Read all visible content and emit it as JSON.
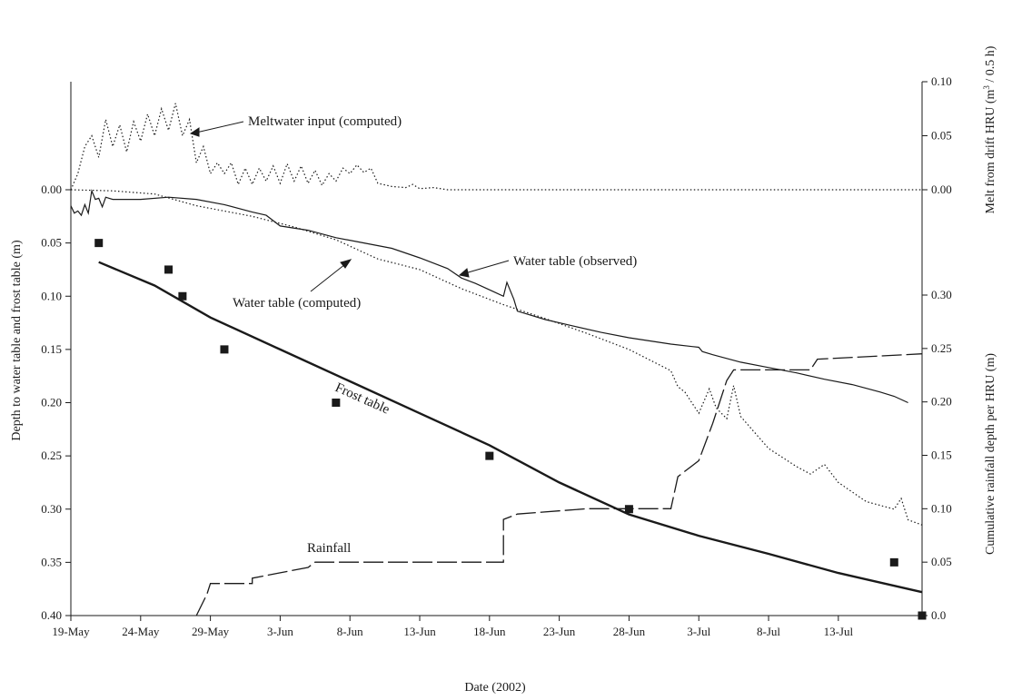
{
  "chart_data": {
    "type": "line",
    "xlabel": "Date (2002)",
    "x_ticks": [
      "19-May",
      "24-May",
      "29-May",
      "3-Jun",
      "8-Jun",
      "13-Jun",
      "18-Jun",
      "23-Jun",
      "28-Jun",
      "3-Jul",
      "8-Jul",
      "13-Jul"
    ],
    "xlim": [
      "2002-05-19",
      "2002-07-19"
    ],
    "left_axis": {
      "label": "Depth to water table and frost table (m)",
      "ylim": [
        0.0,
        0.4
      ],
      "inverted": true,
      "ticks": [
        "0.00",
        "0.05",
        "0.10",
        "0.15",
        "0.20",
        "0.25",
        "0.30",
        "0.35",
        "0.40"
      ]
    },
    "right_top_axis": {
      "label_main": "Melt from drift HRU (m",
      "label_sup": "3",
      "label_tail": " / 0.5 h)",
      "ylim": [
        0.0,
        0.1
      ],
      "ticks": [
        "0.00",
        "0.05",
        "0.10"
      ]
    },
    "right_bottom_axis": {
      "label": "Cumulative rainfall depth per HRU (m)",
      "ylim": [
        0.0,
        0.3
      ],
      "ticks": [
        "0.0",
        "0.05",
        "0.10",
        "0.15",
        "0.20",
        "0.25",
        "0.30"
      ]
    },
    "annotations": {
      "meltwater": "Meltwater input (computed)",
      "wt_observed": "Water table (observed)",
      "wt_computed": "Water table (computed)",
      "frost": "Frost table",
      "rainfall": "Rainfall"
    },
    "series": [
      {
        "name": "Meltwater input (computed)",
        "axis": "right_top",
        "style": "dotted",
        "points": [
          [
            "2002-05-19",
            0.0
          ],
          [
            "2002-05-19 12:00",
            0.015
          ],
          [
            "2002-05-20",
            0.04
          ],
          [
            "2002-05-20 12:00",
            0.05
          ],
          [
            "2002-05-21",
            0.03
          ],
          [
            "2002-05-21 12:00",
            0.065
          ],
          [
            "2002-05-22",
            0.04
          ],
          [
            "2002-05-22 12:00",
            0.06
          ],
          [
            "2002-05-23",
            0.035
          ],
          [
            "2002-05-23 12:00",
            0.063
          ],
          [
            "2002-05-24",
            0.045
          ],
          [
            "2002-05-24 12:00",
            0.07
          ],
          [
            "2002-05-25",
            0.05
          ],
          [
            "2002-05-25 12:00",
            0.075
          ],
          [
            "2002-05-26",
            0.055
          ],
          [
            "2002-05-26 12:00",
            0.08
          ],
          [
            "2002-05-27",
            0.05
          ],
          [
            "2002-05-27 12:00",
            0.065
          ],
          [
            "2002-05-28",
            0.025
          ],
          [
            "2002-05-28 12:00",
            0.04
          ],
          [
            "2002-05-29",
            0.015
          ],
          [
            "2002-05-29 12:00",
            0.025
          ],
          [
            "2002-05-30",
            0.015
          ],
          [
            "2002-05-30 12:00",
            0.025
          ],
          [
            "2002-05-31",
            0.005
          ],
          [
            "2002-05-31 12:00",
            0.02
          ],
          [
            "2002-06-01",
            0.005
          ],
          [
            "2002-06-01 12:00",
            0.02
          ],
          [
            "2002-06-02",
            0.008
          ],
          [
            "2002-06-02 12:00",
            0.022
          ],
          [
            "2002-06-03",
            0.006
          ],
          [
            "2002-06-03 12:00",
            0.024
          ],
          [
            "2002-06-04",
            0.008
          ],
          [
            "2002-06-04 12:00",
            0.022
          ],
          [
            "2002-06-05",
            0.006
          ],
          [
            "2002-06-05 12:00",
            0.018
          ],
          [
            "2002-06-06",
            0.004
          ],
          [
            "2002-06-06 12:00",
            0.015
          ],
          [
            "2002-06-07",
            0.008
          ],
          [
            "2002-06-07 12:00",
            0.02
          ],
          [
            "2002-06-08",
            0.015
          ],
          [
            "2002-06-08 12:00",
            0.023
          ],
          [
            "2002-06-09",
            0.016
          ],
          [
            "2002-06-09 12:00",
            0.02
          ],
          [
            "2002-06-10",
            0.006
          ],
          [
            "2002-06-11",
            0.003
          ],
          [
            "2002-06-12",
            0.002
          ],
          [
            "2002-06-12 12:00",
            0.005
          ],
          [
            "2002-06-13",
            0.001
          ],
          [
            "2002-06-14",
            0.002
          ],
          [
            "2002-06-15",
            0.0
          ],
          [
            "2002-07-19",
            0.0
          ]
        ]
      },
      {
        "name": "Water table (observed)",
        "axis": "left",
        "style": "solid",
        "points": [
          [
            "2002-05-19",
            0.015
          ],
          [
            "2002-05-19 06:00",
            0.022
          ],
          [
            "2002-05-19 12:00",
            0.02
          ],
          [
            "2002-05-19 18:00",
            0.024
          ],
          [
            "2002-05-20",
            0.014
          ],
          [
            "2002-05-20 06:00",
            0.022
          ],
          [
            "2002-05-20 12:00",
            0.001
          ],
          [
            "2002-05-20 18:00",
            0.009
          ],
          [
            "2002-05-21",
            0.008
          ],
          [
            "2002-05-21 06:00",
            0.016
          ],
          [
            "2002-05-21 12:00",
            0.007
          ],
          [
            "2002-05-21 18:00",
            0.008
          ],
          [
            "2002-05-22",
            0.009
          ],
          [
            "2002-05-24",
            0.009
          ],
          [
            "2002-05-26",
            0.007
          ],
          [
            "2002-05-28",
            0.009
          ],
          [
            "2002-05-30",
            0.014
          ],
          [
            "2002-06-01",
            0.021
          ],
          [
            "2002-06-02",
            0.024
          ],
          [
            "2002-06-03",
            0.034
          ],
          [
            "2002-06-05",
            0.038
          ],
          [
            "2002-06-07",
            0.045
          ],
          [
            "2002-06-09",
            0.05
          ],
          [
            "2002-06-11",
            0.055
          ],
          [
            "2002-06-13",
            0.064
          ],
          [
            "2002-06-15",
            0.074
          ],
          [
            "2002-06-16",
            0.083
          ],
          [
            "2002-06-17",
            0.088
          ],
          [
            "2002-06-18",
            0.094
          ],
          [
            "2002-06-19",
            0.1
          ],
          [
            "2002-06-19 06:00",
            0.087
          ],
          [
            "2002-06-19 18:00",
            0.103
          ],
          [
            "2002-06-20",
            0.114
          ],
          [
            "2002-06-22",
            0.122
          ],
          [
            "2002-06-24",
            0.128
          ],
          [
            "2002-06-26",
            0.134
          ],
          [
            "2002-06-28",
            0.139
          ],
          [
            "2002-07-01",
            0.145
          ],
          [
            "2002-07-03",
            0.148
          ],
          [
            "2002-07-03 06:00",
            0.152
          ],
          [
            "2002-07-04",
            0.155
          ],
          [
            "2002-07-06",
            0.162
          ],
          [
            "2002-07-08",
            0.167
          ],
          [
            "2002-07-10",
            0.172
          ],
          [
            "2002-07-12",
            0.178
          ],
          [
            "2002-07-14",
            0.183
          ],
          [
            "2002-07-16",
            0.19
          ],
          [
            "2002-07-17",
            0.194
          ],
          [
            "2002-07-18",
            0.2
          ]
        ]
      },
      {
        "name": "Water table (computed)",
        "axis": "left",
        "style": "dotted",
        "points": [
          [
            "2002-05-19",
            0.0
          ],
          [
            "2002-05-22",
            0.001
          ],
          [
            "2002-05-25",
            0.004
          ],
          [
            "2002-05-28",
            0.015
          ],
          [
            "2002-06-01",
            0.025
          ],
          [
            "2002-06-04",
            0.035
          ],
          [
            "2002-06-07",
            0.047
          ],
          [
            "2002-06-10",
            0.065
          ],
          [
            "2002-06-13",
            0.075
          ],
          [
            "2002-06-16",
            0.093
          ],
          [
            "2002-06-19",
            0.108
          ],
          [
            "2002-06-22",
            0.121
          ],
          [
            "2002-06-25",
            0.135
          ],
          [
            "2002-06-28",
            0.15
          ],
          [
            "2002-07-01",
            0.17
          ],
          [
            "2002-07-01 12:00",
            0.185
          ],
          [
            "2002-07-02",
            0.19
          ],
          [
            "2002-07-03",
            0.21
          ],
          [
            "2002-07-03 18:00",
            0.187
          ],
          [
            "2002-07-04 06:00",
            0.205
          ],
          [
            "2002-07-05",
            0.215
          ],
          [
            "2002-07-05 12:00",
            0.184
          ],
          [
            "2002-07-06",
            0.213
          ],
          [
            "2002-07-08",
            0.243
          ],
          [
            "2002-07-10",
            0.26
          ],
          [
            "2002-07-11",
            0.267
          ],
          [
            "2002-07-12",
            0.258
          ],
          [
            "2002-07-13",
            0.275
          ],
          [
            "2002-07-15",
            0.293
          ],
          [
            "2002-07-17",
            0.3
          ],
          [
            "2002-07-17 12:00",
            0.29
          ],
          [
            "2002-07-18",
            0.31
          ],
          [
            "2002-07-19",
            0.315
          ]
        ]
      },
      {
        "name": "Frost table",
        "axis": "left",
        "style": "thick-solid",
        "points": [
          [
            "2002-05-21",
            0.068
          ],
          [
            "2002-05-25",
            0.09
          ],
          [
            "2002-05-29",
            0.12
          ],
          [
            "2002-06-03",
            0.15
          ],
          [
            "2002-06-08",
            0.18
          ],
          [
            "2002-06-13",
            0.21
          ],
          [
            "2002-06-18",
            0.24
          ],
          [
            "2002-06-23",
            0.275
          ],
          [
            "2002-06-28",
            0.305
          ],
          [
            "2002-07-03",
            0.325
          ],
          [
            "2002-07-08",
            0.342
          ],
          [
            "2002-07-13",
            0.36
          ],
          [
            "2002-07-19",
            0.378
          ]
        ]
      },
      {
        "name": "Frost table (observed points)",
        "axis": "left",
        "style": "square-markers",
        "points": [
          [
            "2002-05-21",
            0.05
          ],
          [
            "2002-05-26",
            0.075
          ],
          [
            "2002-05-27",
            0.1
          ],
          [
            "2002-05-30",
            0.15
          ],
          [
            "2002-06-07",
            0.2
          ],
          [
            "2002-06-18",
            0.25
          ],
          [
            "2002-06-28",
            0.3
          ],
          [
            "2002-07-17",
            0.35
          ],
          [
            "2002-07-19",
            0.4
          ]
        ]
      },
      {
        "name": "Rainfall",
        "axis": "right_bottom",
        "style": "long-dash-step",
        "points": [
          [
            "2002-05-28",
            0.0
          ],
          [
            "2002-05-28 18:00",
            0.02
          ],
          [
            "2002-05-29",
            0.03
          ],
          [
            "2002-06-01",
            0.03
          ],
          [
            "2002-06-01",
            0.035
          ],
          [
            "2002-06-03",
            0.04
          ],
          [
            "2002-06-05",
            0.045
          ],
          [
            "2002-06-05 12:00",
            0.05
          ],
          [
            "2002-06-19",
            0.05
          ],
          [
            "2002-06-19",
            0.09
          ],
          [
            "2002-06-20",
            0.095
          ],
          [
            "2002-06-25",
            0.1
          ],
          [
            "2002-07-01",
            0.1
          ],
          [
            "2002-07-01 12:00",
            0.13
          ],
          [
            "2002-07-03",
            0.145
          ],
          [
            "2002-07-04",
            0.18
          ],
          [
            "2002-07-05",
            0.22
          ],
          [
            "2002-07-05 12:00",
            0.23
          ],
          [
            "2002-07-11",
            0.23
          ],
          [
            "2002-07-11 12:00",
            0.24
          ],
          [
            "2002-07-19",
            0.245
          ]
        ]
      }
    ]
  }
}
